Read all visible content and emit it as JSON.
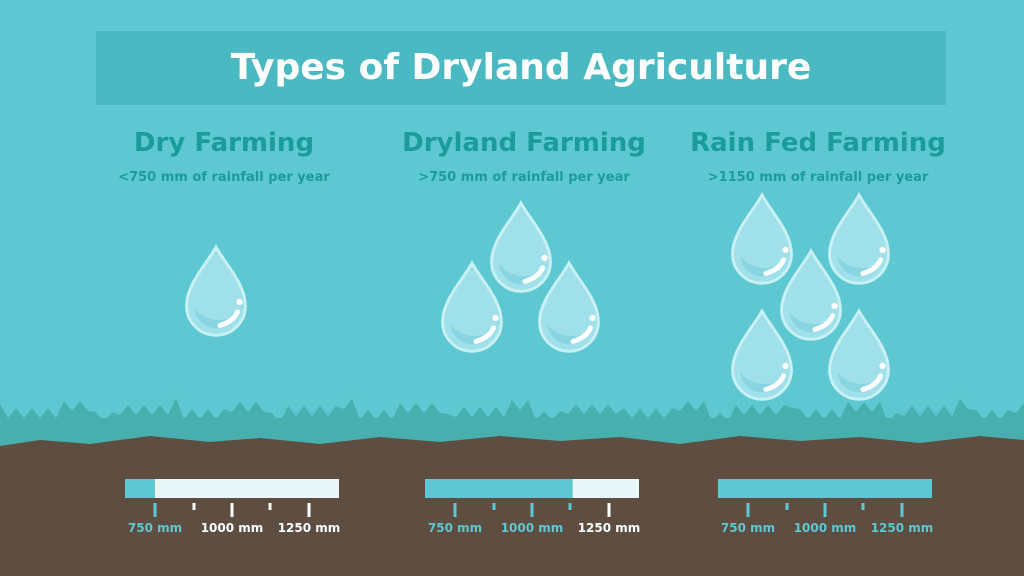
{
  "banner": {
    "title": "Types of Dryland Agriculture"
  },
  "columns": [
    {
      "title": "Dry Farming",
      "subtitle": "<750 mm of rainfall per year",
      "drops": 1,
      "fill_fraction": 0.14
    },
    {
      "title": "Dryland Farming",
      "subtitle": ">750 mm of rainfall per year",
      "drops": 3,
      "fill_fraction": 0.69
    },
    {
      "title": "Rain Fed Farming",
      "subtitle": ">1150 mm of rainfall per year",
      "drops": 5,
      "fill_fraction": 1.0
    }
  ],
  "scale": {
    "labels": [
      "750 mm",
      "1000 mm",
      "1250 mm"
    ]
  },
  "colors": {
    "sky": "#5ec8d2",
    "banner": "#4ab9c1",
    "heading": "#1a9c9b",
    "grass": "#47b0ae",
    "soil": "#5e4d41",
    "drop": "#9fe0ea",
    "bar_fill": "#5ec8d2",
    "bar_empty": "#e9f7f8",
    "label_active": "#5ec8d2",
    "label_inactive": "#ffffff"
  }
}
